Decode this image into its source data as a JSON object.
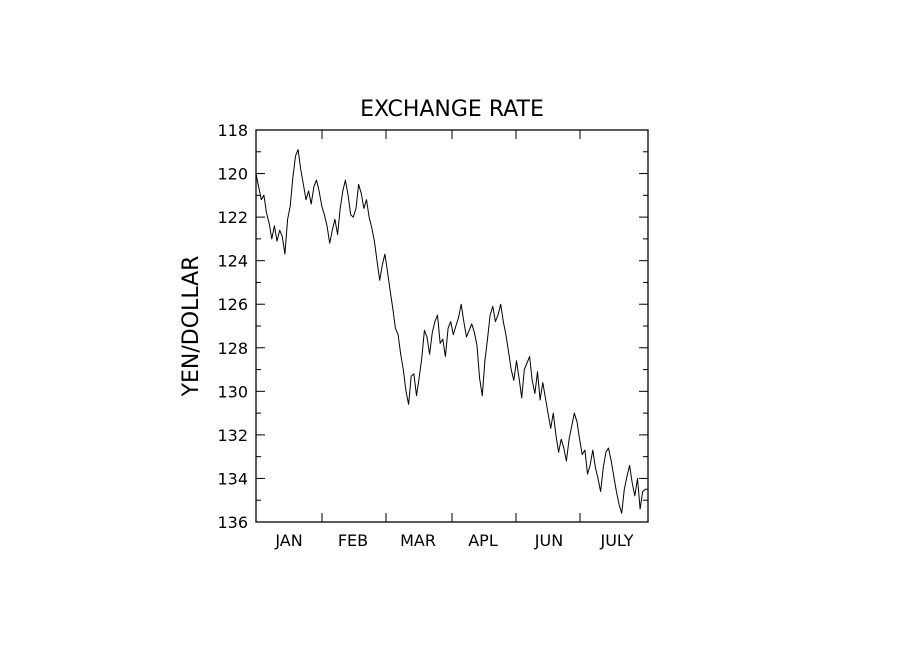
{
  "chart_data": {
    "type": "line",
    "title": "EXCHANGE RATE",
    "xlabel": "",
    "ylabel": "YEN/DOLLAR",
    "y_axis_inverted": true,
    "ylim": [
      118,
      136
    ],
    "yticks": [
      "118",
      "120",
      "122",
      "124",
      "126",
      "128",
      "130",
      "132",
      "134",
      "136"
    ],
    "months": [
      "JAN",
      "FEB",
      "MAR",
      "APL",
      "JUN",
      "JULY"
    ],
    "grid": false,
    "color": "#000000",
    "series": [
      {
        "x": [
          0,
          1,
          2,
          3,
          4,
          5,
          6,
          7,
          8,
          9,
          10,
          11,
          12,
          13,
          14,
          15,
          16,
          17,
          18,
          19,
          20,
          21,
          22,
          23,
          24,
          25,
          26,
          27,
          28,
          29,
          30,
          31,
          32,
          33,
          34,
          35,
          36,
          37,
          38,
          39,
          40,
          41,
          42,
          43,
          44,
          45,
          46,
          47,
          48,
          49,
          50,
          51,
          52,
          53,
          54,
          55,
          56,
          57,
          58,
          59,
          60,
          61,
          62,
          63,
          64,
          65,
          66,
          67,
          68,
          69,
          70,
          71,
          72,
          73,
          74,
          75,
          76,
          77,
          78,
          79,
          80,
          81,
          82,
          83,
          84,
          85,
          86,
          87,
          88,
          89,
          90,
          91,
          92,
          93,
          94,
          95,
          96,
          97,
          98,
          99,
          100,
          101,
          102,
          103,
          104,
          105,
          106,
          107,
          108,
          109,
          110,
          111,
          112,
          113,
          114,
          115,
          116,
          117,
          118,
          119,
          120,
          121,
          122,
          123,
          124,
          125,
          126,
          127,
          128,
          129,
          130,
          131,
          132,
          133,
          134,
          135,
          136,
          137,
          138,
          139,
          140,
          141,
          142,
          143,
          144,
          145,
          146,
          147,
          148,
          149
        ],
        "values": [
          120.0,
          120.6,
          121.2,
          121.0,
          121.8,
          122.3,
          123.0,
          122.4,
          123.1,
          122.6,
          122.9,
          123.7,
          122.1,
          121.5,
          120.2,
          119.2,
          118.9,
          119.8,
          120.5,
          121.2,
          120.8,
          121.4,
          120.6,
          120.3,
          120.8,
          121.5,
          121.9,
          122.4,
          123.2,
          122.6,
          122.1,
          122.8,
          121.6,
          120.8,
          120.3,
          121.0,
          121.9,
          122.0,
          121.6,
          120.5,
          120.9,
          121.6,
          121.2,
          122.0,
          122.5,
          123.1,
          124.0,
          124.9,
          124.2,
          123.7,
          124.5,
          125.4,
          126.2,
          127.1,
          127.4,
          128.3,
          129.0,
          130.0,
          130.6,
          129.3,
          129.2,
          130.2,
          129.4,
          128.5,
          127.2,
          127.5,
          128.3,
          127.3,
          126.8,
          126.5,
          127.8,
          127.6,
          128.4,
          127.1,
          126.8,
          127.4,
          127.0,
          126.6,
          126.0,
          126.8,
          127.5,
          127.2,
          126.9,
          127.3,
          127.9,
          129.4,
          130.2,
          128.6,
          127.6,
          126.5,
          126.1,
          126.8,
          126.5,
          126.0,
          126.8,
          127.4,
          128.2,
          129.0,
          129.5,
          128.6,
          129.4,
          130.3,
          129.0,
          128.7,
          128.4,
          129.5,
          130.1,
          129.1,
          130.4,
          129.6,
          130.3,
          131.0,
          131.7,
          131.0,
          132.0,
          132.8,
          132.2,
          132.6,
          133.2,
          132.2,
          131.6,
          131.0,
          131.4,
          132.2,
          132.9,
          132.7,
          133.8,
          133.4,
          132.7,
          133.5,
          134.0,
          134.6,
          133.5,
          132.8,
          132.6,
          133.2,
          133.9,
          134.6,
          135.2,
          135.6,
          134.5,
          133.9,
          133.4,
          134.2,
          134.8,
          134.0,
          135.4,
          134.6,
          134.5,
          134.5
        ]
      }
    ]
  }
}
